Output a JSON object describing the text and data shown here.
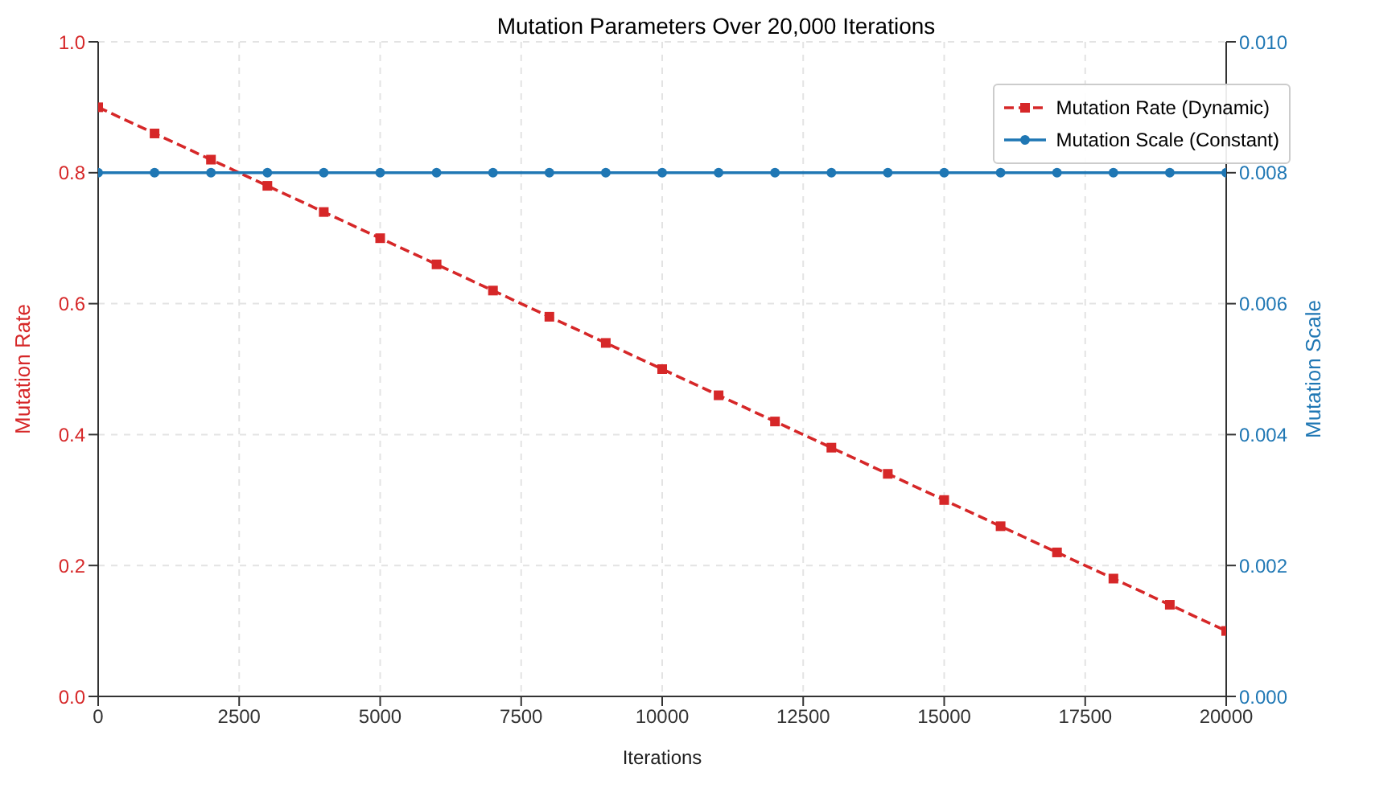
{
  "chart_data": {
    "type": "line",
    "title": "Mutation Parameters Over 20,000 Iterations",
    "xlabel": "Iterations",
    "ylabel": "Mutation Rate",
    "y2label": "Mutation Scale",
    "x": [
      0,
      1000,
      2000,
      3000,
      4000,
      5000,
      6000,
      7000,
      8000,
      9000,
      10000,
      11000,
      12000,
      13000,
      14000,
      15000,
      16000,
      17000,
      18000,
      19000,
      20000
    ],
    "series": [
      {
        "name": "Mutation Rate (Dynamic)",
        "color": "#d62728",
        "marker": "square",
        "line_style": "dashed",
        "values": [
          0.9,
          0.86,
          0.82,
          0.78,
          0.74,
          0.7,
          0.66,
          0.62,
          0.58,
          0.54,
          0.5,
          0.46,
          0.42,
          0.38,
          0.34,
          0.3,
          0.26,
          0.22,
          0.18,
          0.14,
          0.1
        ]
      },
      {
        "name": "Mutation Scale (Constant)",
        "color": "#1f77b4",
        "marker": "circle",
        "line_style": "solid",
        "axis": "y2",
        "values": [
          0.008,
          0.008,
          0.008,
          0.008,
          0.008,
          0.008,
          0.008,
          0.008,
          0.008,
          0.008,
          0.008,
          0.008,
          0.008,
          0.008,
          0.008,
          0.008,
          0.008,
          0.008,
          0.008,
          0.008,
          0.008
        ]
      }
    ],
    "xlim": [
      0,
      20000
    ],
    "xticks": [
      0,
      2500,
      5000,
      7500,
      10000,
      12500,
      15000,
      17500,
      20000
    ],
    "ylim": [
      0,
      1
    ],
    "yticks": [
      {
        "value": 0,
        "label": "0.0"
      },
      {
        "value": 0.2,
        "label": "0.2"
      },
      {
        "value": 0.4,
        "label": "0.4"
      },
      {
        "value": 0.6,
        "label": "0.6"
      },
      {
        "value": 0.8,
        "label": "0.8"
      },
      {
        "value": 1,
        "label": "1.0"
      }
    ],
    "y2lim": [
      0,
      0.01
    ],
    "y2ticks": [
      {
        "value": 0,
        "label": "0.000"
      },
      {
        "value": 0.002,
        "label": "0.002"
      },
      {
        "value": 0.004,
        "label": "0.004"
      },
      {
        "value": 0.006,
        "label": "0.006"
      },
      {
        "value": 0.008,
        "label": "0.008"
      },
      {
        "value": 0.01,
        "label": "0.010"
      }
    ],
    "grid": true,
    "legend": "top right"
  }
}
